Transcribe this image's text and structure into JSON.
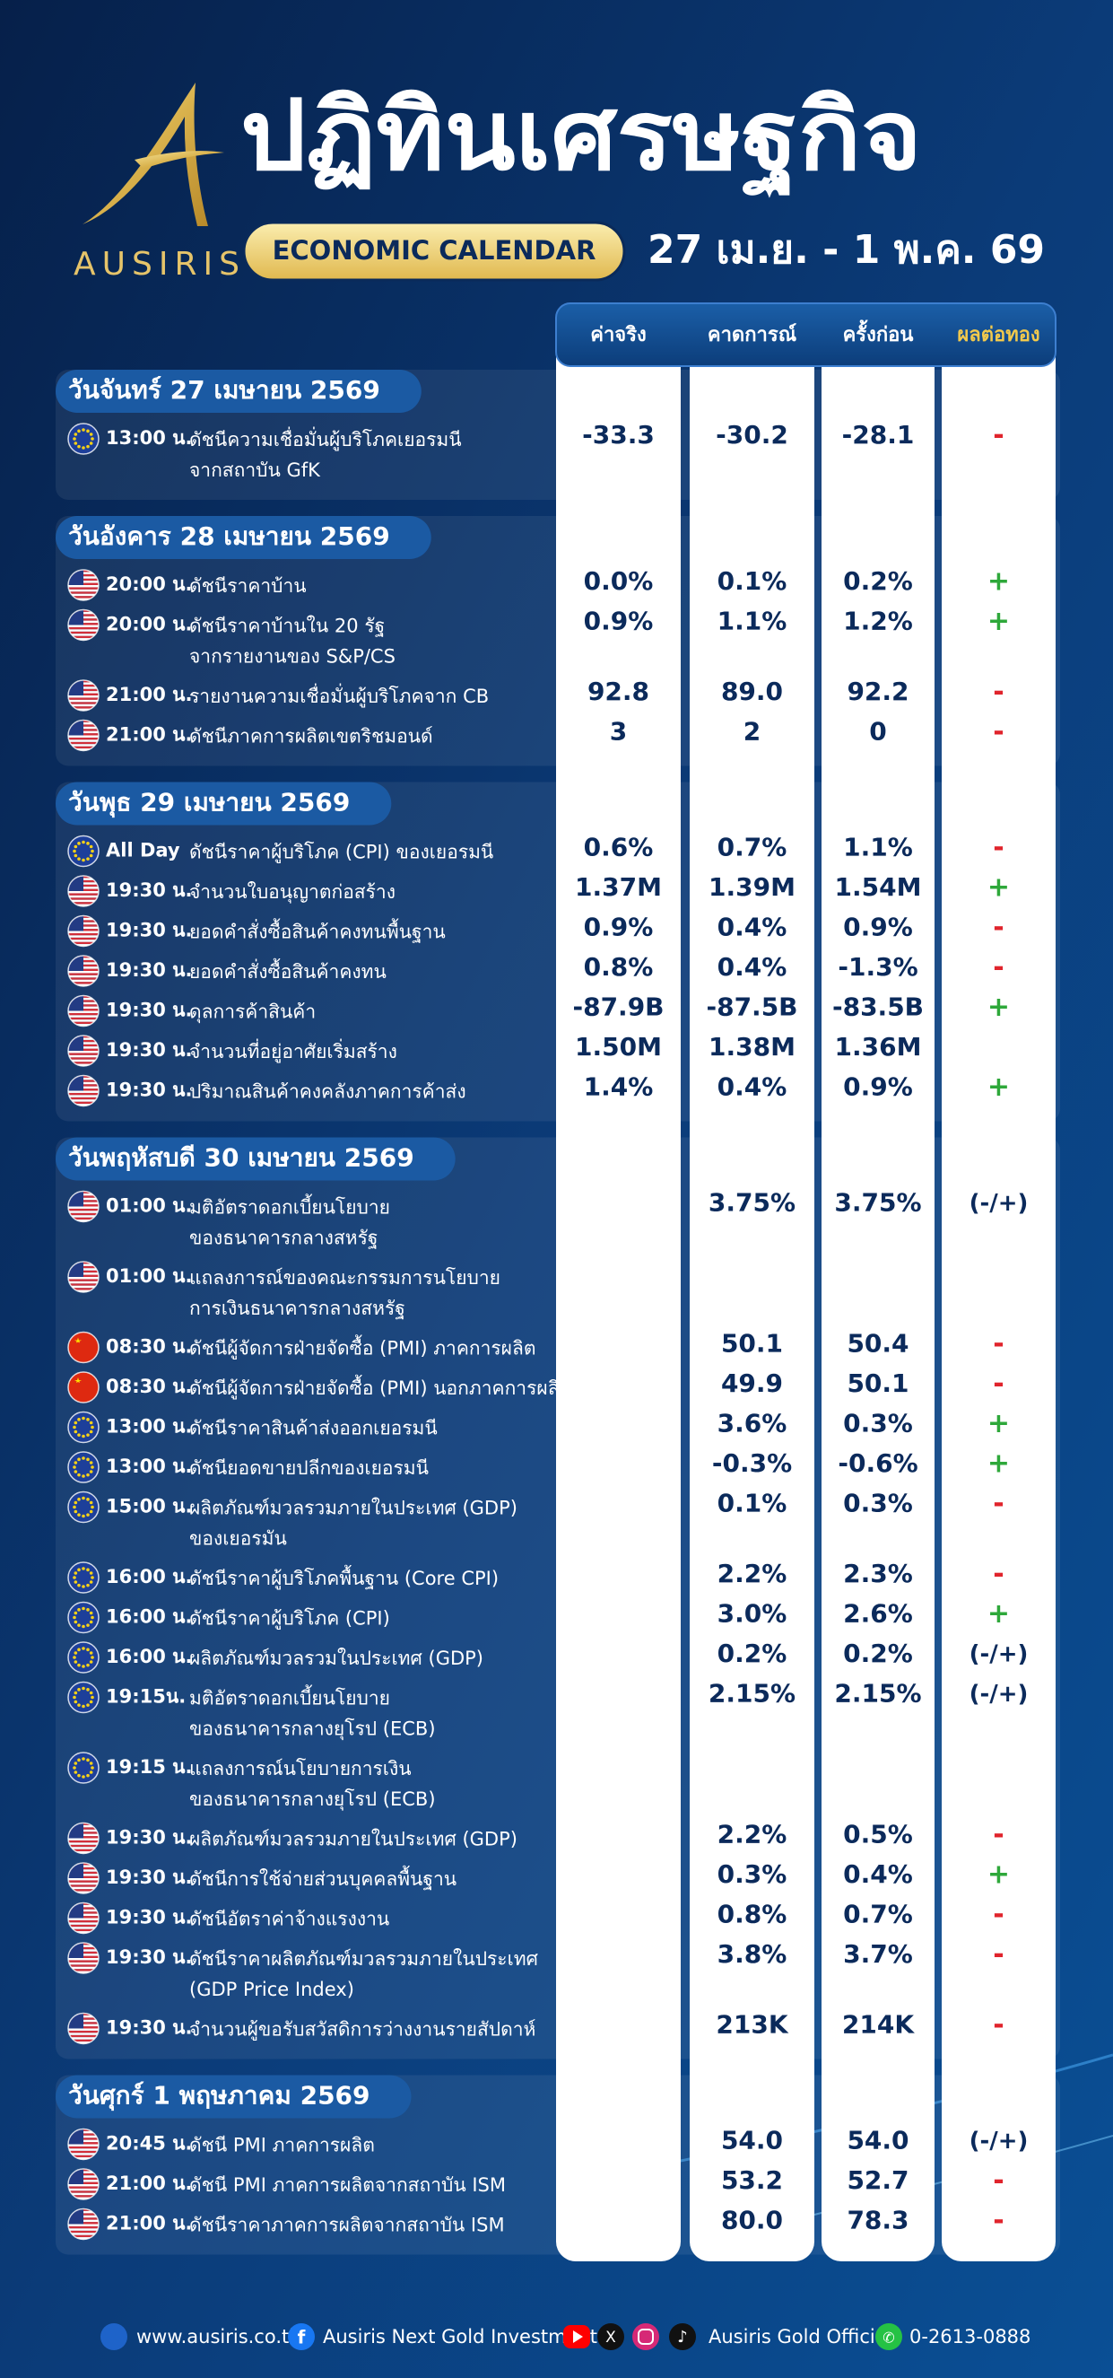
{
  "header": {
    "brand": "AUSIRIS",
    "title": "ปฏิทินเศรษฐกิจ",
    "subtitle": "ECONOMIC CALENDAR",
    "date_range": "27 เม.ย. - 1 พ.ค. 69"
  },
  "columns": [
    "ค่าจริง",
    "คาดการณ์",
    "ครั้งก่อน",
    "ผลต่อทอง"
  ],
  "days": [
    {
      "label": "วันจันทร์ 27 เมษายน 2569",
      "events": [
        {
          "time": "13:00 น.",
          "flag": "eu",
          "lines": [
            "ดัชนีความเชื่อมั่นผู้บริโภคเยอรมนี",
            "จากสถาบัน GfK"
          ],
          "actual": "-33.3",
          "forecast": "-30.2",
          "previous": "-28.1",
          "impact": "-"
        }
      ]
    },
    {
      "label": "วันอังคาร 28 เมษายน 2569",
      "events": [
        {
          "time": "20:00 น.",
          "flag": "us",
          "lines": [
            "ดัชนีราคาบ้าน"
          ],
          "actual": "0.0%",
          "forecast": "0.1%",
          "previous": "0.2%",
          "impact": "+"
        },
        {
          "time": "20:00 น.",
          "flag": "us",
          "lines": [
            "ดัชนีราคาบ้านใน 20 รัฐ",
            "จากรายงานของ S&P/CS"
          ],
          "actual": "0.9%",
          "forecast": "1.1%",
          "previous": "1.2%",
          "impact": "+"
        },
        {
          "time": "21:00 น.",
          "flag": "us",
          "lines": [
            "รายงานความเชื่อมั่นผู้บริโภคจาก CB"
          ],
          "actual": "92.8",
          "forecast": "89.0",
          "previous": "92.2",
          "impact": "-"
        },
        {
          "time": "21:00 น.",
          "flag": "us",
          "lines": [
            "ดัชนีภาคการผลิตเขตริชมอนด์"
          ],
          "actual": "3",
          "forecast": "2",
          "previous": "0",
          "impact": "-"
        }
      ]
    },
    {
      "label": "วันพุธ 29 เมษายน 2569",
      "events": [
        {
          "time": "All Day",
          "flag": "eu",
          "lines": [
            "ดัชนีราคาผู้บริโภค (CPI) ของเยอรมนี"
          ],
          "actual": "0.6%",
          "forecast": "0.7%",
          "previous": "1.1%",
          "impact": "-"
        },
        {
          "time": "19:30 น.",
          "flag": "us",
          "lines": [
            "จำนวนใบอนุญาตก่อสร้าง"
          ],
          "actual": "1.37M",
          "forecast": "1.39M",
          "previous": "1.54M",
          "impact": "+"
        },
        {
          "time": "19:30 น.",
          "flag": "us",
          "lines": [
            "ยอดคำสั่งซื้อสินค้าคงทนพื้นฐาน"
          ],
          "actual": "0.9%",
          "forecast": "0.4%",
          "previous": "0.9%",
          "impact": "-"
        },
        {
          "time": "19:30 น.",
          "flag": "us",
          "lines": [
            "ยอดคำสั่งซื้อสินค้าคงทน"
          ],
          "actual": "0.8%",
          "forecast": "0.4%",
          "previous": "-1.3%",
          "impact": "-"
        },
        {
          "time": "19:30 น.",
          "flag": "us",
          "lines": [
            "ดุลการค้าสินค้า"
          ],
          "actual": "-87.9B",
          "forecast": "-87.5B",
          "previous": "-83.5B",
          "impact": "+"
        },
        {
          "time": "19:30 น.",
          "flag": "us",
          "lines": [
            "จำนวนที่อยู่อาศัยเริ่มสร้าง"
          ],
          "actual": "1.50M",
          "forecast": "1.38M",
          "previous": "1.36M"
        },
        {
          "time": "19:30 น.",
          "flag": "us",
          "lines": [
            "ปริมาณสินค้าคงคลังภาคการค้าส่ง"
          ],
          "actual": "1.4%",
          "forecast": "0.4%",
          "previous": "0.9%",
          "impact": "+"
        }
      ]
    },
    {
      "label": "วันพฤหัสบดี 30 เมษายน 2569",
      "events": [
        {
          "time": "01:00 น.",
          "flag": "us",
          "lines": [
            "มติอัตราดอกเบี้ยนโยบาย",
            "ของธนาคารกลางสหรัฐ"
          ],
          "forecast": "3.75%",
          "previous": "3.75%",
          "impact": "(-/+)"
        },
        {
          "time": "01:00 น.",
          "flag": "us",
          "lines": [
            "แถลงการณ์ของคณะกรรมการนโยบาย",
            "การเงินธนาคารกลางสหรัฐ"
          ]
        },
        {
          "time": "08:30 น.",
          "flag": "cn",
          "lines": [
            "ดัชนีผู้จัดการฝ่ายจัดซื้อ (PMI) ภาคการผลิต"
          ],
          "forecast": "50.1",
          "previous": "50.4",
          "impact": "-"
        },
        {
          "time": "08:30 น.",
          "flag": "cn",
          "lines": [
            "ดัชนีผู้จัดการฝ่ายจัดซื้อ (PMI) นอกภาคการผลิต"
          ],
          "forecast": "49.9",
          "previous": "50.1",
          "impact": "-"
        },
        {
          "time": "13:00 น.",
          "flag": "eu",
          "lines": [
            "ดัชนีราคาสินค้าส่งออกเยอรมนี"
          ],
          "forecast": "3.6%",
          "previous": "0.3%",
          "impact": "+"
        },
        {
          "time": "13:00 น.",
          "flag": "eu",
          "lines": [
            "ดัชนียอดขายปลีกของเยอรมนี"
          ],
          "forecast": "-0.3%",
          "previous": "-0.6%",
          "impact": "+"
        },
        {
          "time": "15:00 น.",
          "flag": "eu",
          "lines": [
            "ผลิตภัณฑ์มวลรวมภายในประเทศ (GDP)",
            "ของเยอรมัน"
          ],
          "forecast": "0.1%",
          "previous": "0.3%",
          "impact": "-"
        },
        {
          "time": "16:00 น.",
          "flag": "eu",
          "lines": [
            "ดัชนีราคาผู้บริโภคพื้นฐาน (Core CPI)"
          ],
          "forecast": "2.2%",
          "previous": "2.3%",
          "impact": "-"
        },
        {
          "time": "16:00 น.",
          "flag": "eu",
          "lines": [
            "ดัชนีราคาผู้บริโภค (CPI)"
          ],
          "forecast": "3.0%",
          "previous": "2.6%",
          "impact": "+"
        },
        {
          "time": "16:00 น.",
          "flag": "eu",
          "lines": [
            "ผลิตภัณฑ์มวลรวมในประเทศ (GDP)"
          ],
          "forecast": "0.2%",
          "previous": "0.2%",
          "impact": "(-/+)"
        },
        {
          "time": "19:15น.",
          "flag": "eu",
          "lines": [
            "มติอัตราดอกเบี้ยนโยบาย",
            "ของธนาคารกลางยุโรป (ECB)"
          ],
          "forecast": "2.15%",
          "previous": "2.15%",
          "impact": "(-/+)"
        },
        {
          "time": "19:15 น.",
          "flag": "eu",
          "lines": [
            "แถลงการณ์นโยบายการเงิน",
            "ของธนาคารกลางยุโรป (ECB)"
          ]
        },
        {
          "time": "19:30 น.",
          "flag": "us",
          "lines": [
            "ผลิตภัณฑ์มวลรวมภายในประเทศ (GDP)"
          ],
          "forecast": "2.2%",
          "previous": "0.5%",
          "impact": "-"
        },
        {
          "time": "19:30 น.",
          "flag": "us",
          "lines": [
            "ดัชนีการใช้จ่ายส่วนบุคคลพื้นฐาน"
          ],
          "forecast": "0.3%",
          "previous": "0.4%",
          "impact": "+"
        },
        {
          "time": "19:30 น.",
          "flag": "us",
          "lines": [
            "ดัชนีอัตราค่าจ้างแรงงาน"
          ],
          "forecast": "0.8%",
          "previous": "0.7%",
          "impact": "-"
        },
        {
          "time": "19:30 น.",
          "flag": "us",
          "lines": [
            "ดัชนีราคาผลิตภัณฑ์มวลรวมภายในประเทศ",
            "(GDP Price Index)"
          ],
          "forecast": "3.8%",
          "previous": "3.7%",
          "impact": "-"
        },
        {
          "time": "19:30 น.",
          "flag": "us",
          "lines": [
            "จำนวนผู้ขอรับสวัสดิการว่างงานรายสัปดาห์"
          ],
          "forecast": "213K",
          "previous": "214K",
          "impact": "-"
        }
      ]
    },
    {
      "label": "วันศุกร์ 1 พฤษภาคม 2569",
      "events": [
        {
          "time": "20:45 น.",
          "flag": "us",
          "lines": [
            "ดัชนี PMI ภาคการผลิต"
          ],
          "forecast": "54.0",
          "previous": "54.0",
          "impact": "(-/+)"
        },
        {
          "time": "21:00 น.",
          "flag": "us",
          "lines": [
            "ดัชนี PMI ภาคการผลิตจากสถาบัน ISM"
          ],
          "forecast": "53.2",
          "previous": "52.7",
          "impact": "-"
        },
        {
          "time": "21:00 น.",
          "flag": "us",
          "lines": [
            "ดัชนีราคาภาคการผลิตจากสถาบัน ISM"
          ],
          "forecast": "80.0",
          "previous": "78.3",
          "impact": "-"
        }
      ]
    }
  ],
  "footer": {
    "website": "www.ausiris.co.th",
    "facebook": "Ausiris Next Gold Investment",
    "social": "Ausiris Gold Official",
    "phone": "0-2613-0888"
  }
}
